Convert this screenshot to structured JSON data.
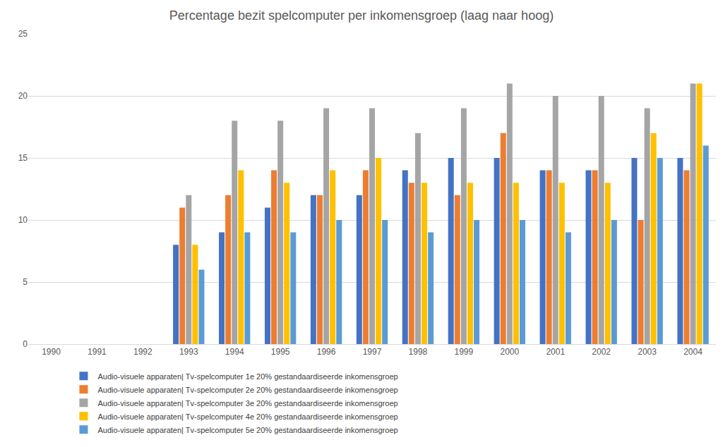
{
  "chart_data": {
    "type": "bar",
    "title": "Percentage bezit spelcomputer per inkomensgroep (laag naar hoog)",
    "categories": [
      "1990",
      "1991",
      "1992",
      "1993",
      "1994",
      "1995",
      "1996",
      "1997",
      "1998",
      "1999",
      "2000",
      "2001",
      "2002",
      "2003",
      "2004"
    ],
    "series": [
      {
        "name": "Audio-visuele apparaten| Tv-spelcomputer 1e 20% gestandaardiseerde inkomensgroep",
        "color": "#4472c4",
        "values": [
          null,
          null,
          null,
          8,
          9,
          11,
          12,
          12,
          14,
          15,
          15,
          14,
          14,
          15,
          15
        ]
      },
      {
        "name": "Audio-visuele apparaten| Tv-spelcomputer 2e 20% gestandaardiseerde inkomensgroep",
        "color": "#ed7d31",
        "values": [
          null,
          null,
          null,
          11,
          12,
          14,
          12,
          14,
          13,
          12,
          17,
          14,
          14,
          10,
          14
        ]
      },
      {
        "name": "Audio-visuele apparaten| Tv-spelcomputer 3e 20% gestandaardiseerde inkomensgroep",
        "color": "#a5a5a5",
        "values": [
          null,
          null,
          null,
          12,
          18,
          18,
          19,
          19,
          17,
          19,
          21,
          20,
          20,
          19,
          21
        ]
      },
      {
        "name": "Audio-visuele apparaten| Tv-spelcomputer 4e 20% gestandaardiseerde inkomensgroep",
        "color": "#ffc000",
        "values": [
          null,
          null,
          null,
          8,
          14,
          13,
          14,
          15,
          13,
          13,
          13,
          13,
          13,
          17,
          21
        ]
      },
      {
        "name": "Audio-visuele apparaten| Tv-spelcomputer 5e 20% gestandaardiseerde inkomensgroep",
        "color": "#5b9bd5",
        "values": [
          null,
          null,
          null,
          6,
          9,
          9,
          10,
          10,
          9,
          10,
          10,
          9,
          10,
          15,
          16
        ]
      }
    ],
    "ylim": [
      0,
      25
    ],
    "yticks": [
      0,
      5,
      10,
      15,
      20,
      25
    ],
    "grid": true,
    "legend": "bottom"
  }
}
